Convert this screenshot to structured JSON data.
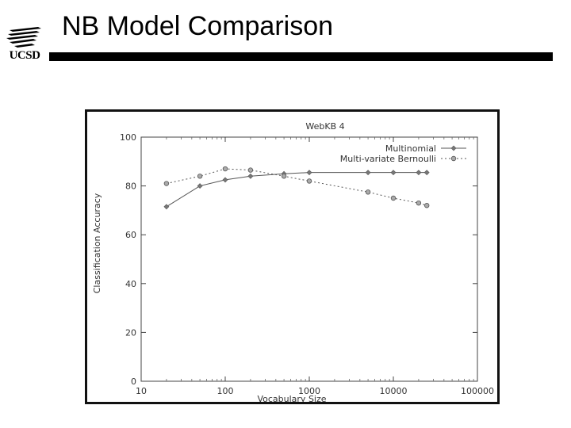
{
  "slide": {
    "title": "NB Model Comparison",
    "logo_text": "UCSD"
  },
  "chart_data": {
    "type": "line",
    "title": "WebKB 4",
    "xlabel": "Vocabulary Size",
    "ylabel": "Classification Accuracy",
    "x_scale": "log",
    "xlim": [
      10,
      100000
    ],
    "ylim": [
      0,
      100
    ],
    "x_ticks": [
      "10",
      "100",
      "1000",
      "10000",
      "100000"
    ],
    "y_ticks": [
      "0",
      "20",
      "40",
      "60",
      "80",
      "100"
    ],
    "legend_position": "top-right",
    "series": [
      {
        "name": "Multinomial",
        "marker": "diamond",
        "line": "solid",
        "color": "#555555",
        "x": [
          20,
          50,
          100,
          200,
          500,
          1000,
          5000,
          10000,
          20000,
          25000
        ],
        "y": [
          71.5,
          80,
          82.5,
          84,
          85,
          85.5,
          85.5,
          85.5,
          85.5,
          85.5
        ]
      },
      {
        "name": "Multi-variate Bernoulli",
        "marker": "circle",
        "line": "dotted",
        "color": "#555555",
        "x": [
          20,
          50,
          100,
          200,
          500,
          1000,
          5000,
          10000,
          20000,
          25000
        ],
        "y": [
          81,
          84,
          87,
          86.5,
          84,
          82,
          77.5,
          75,
          73,
          72
        ]
      }
    ]
  }
}
